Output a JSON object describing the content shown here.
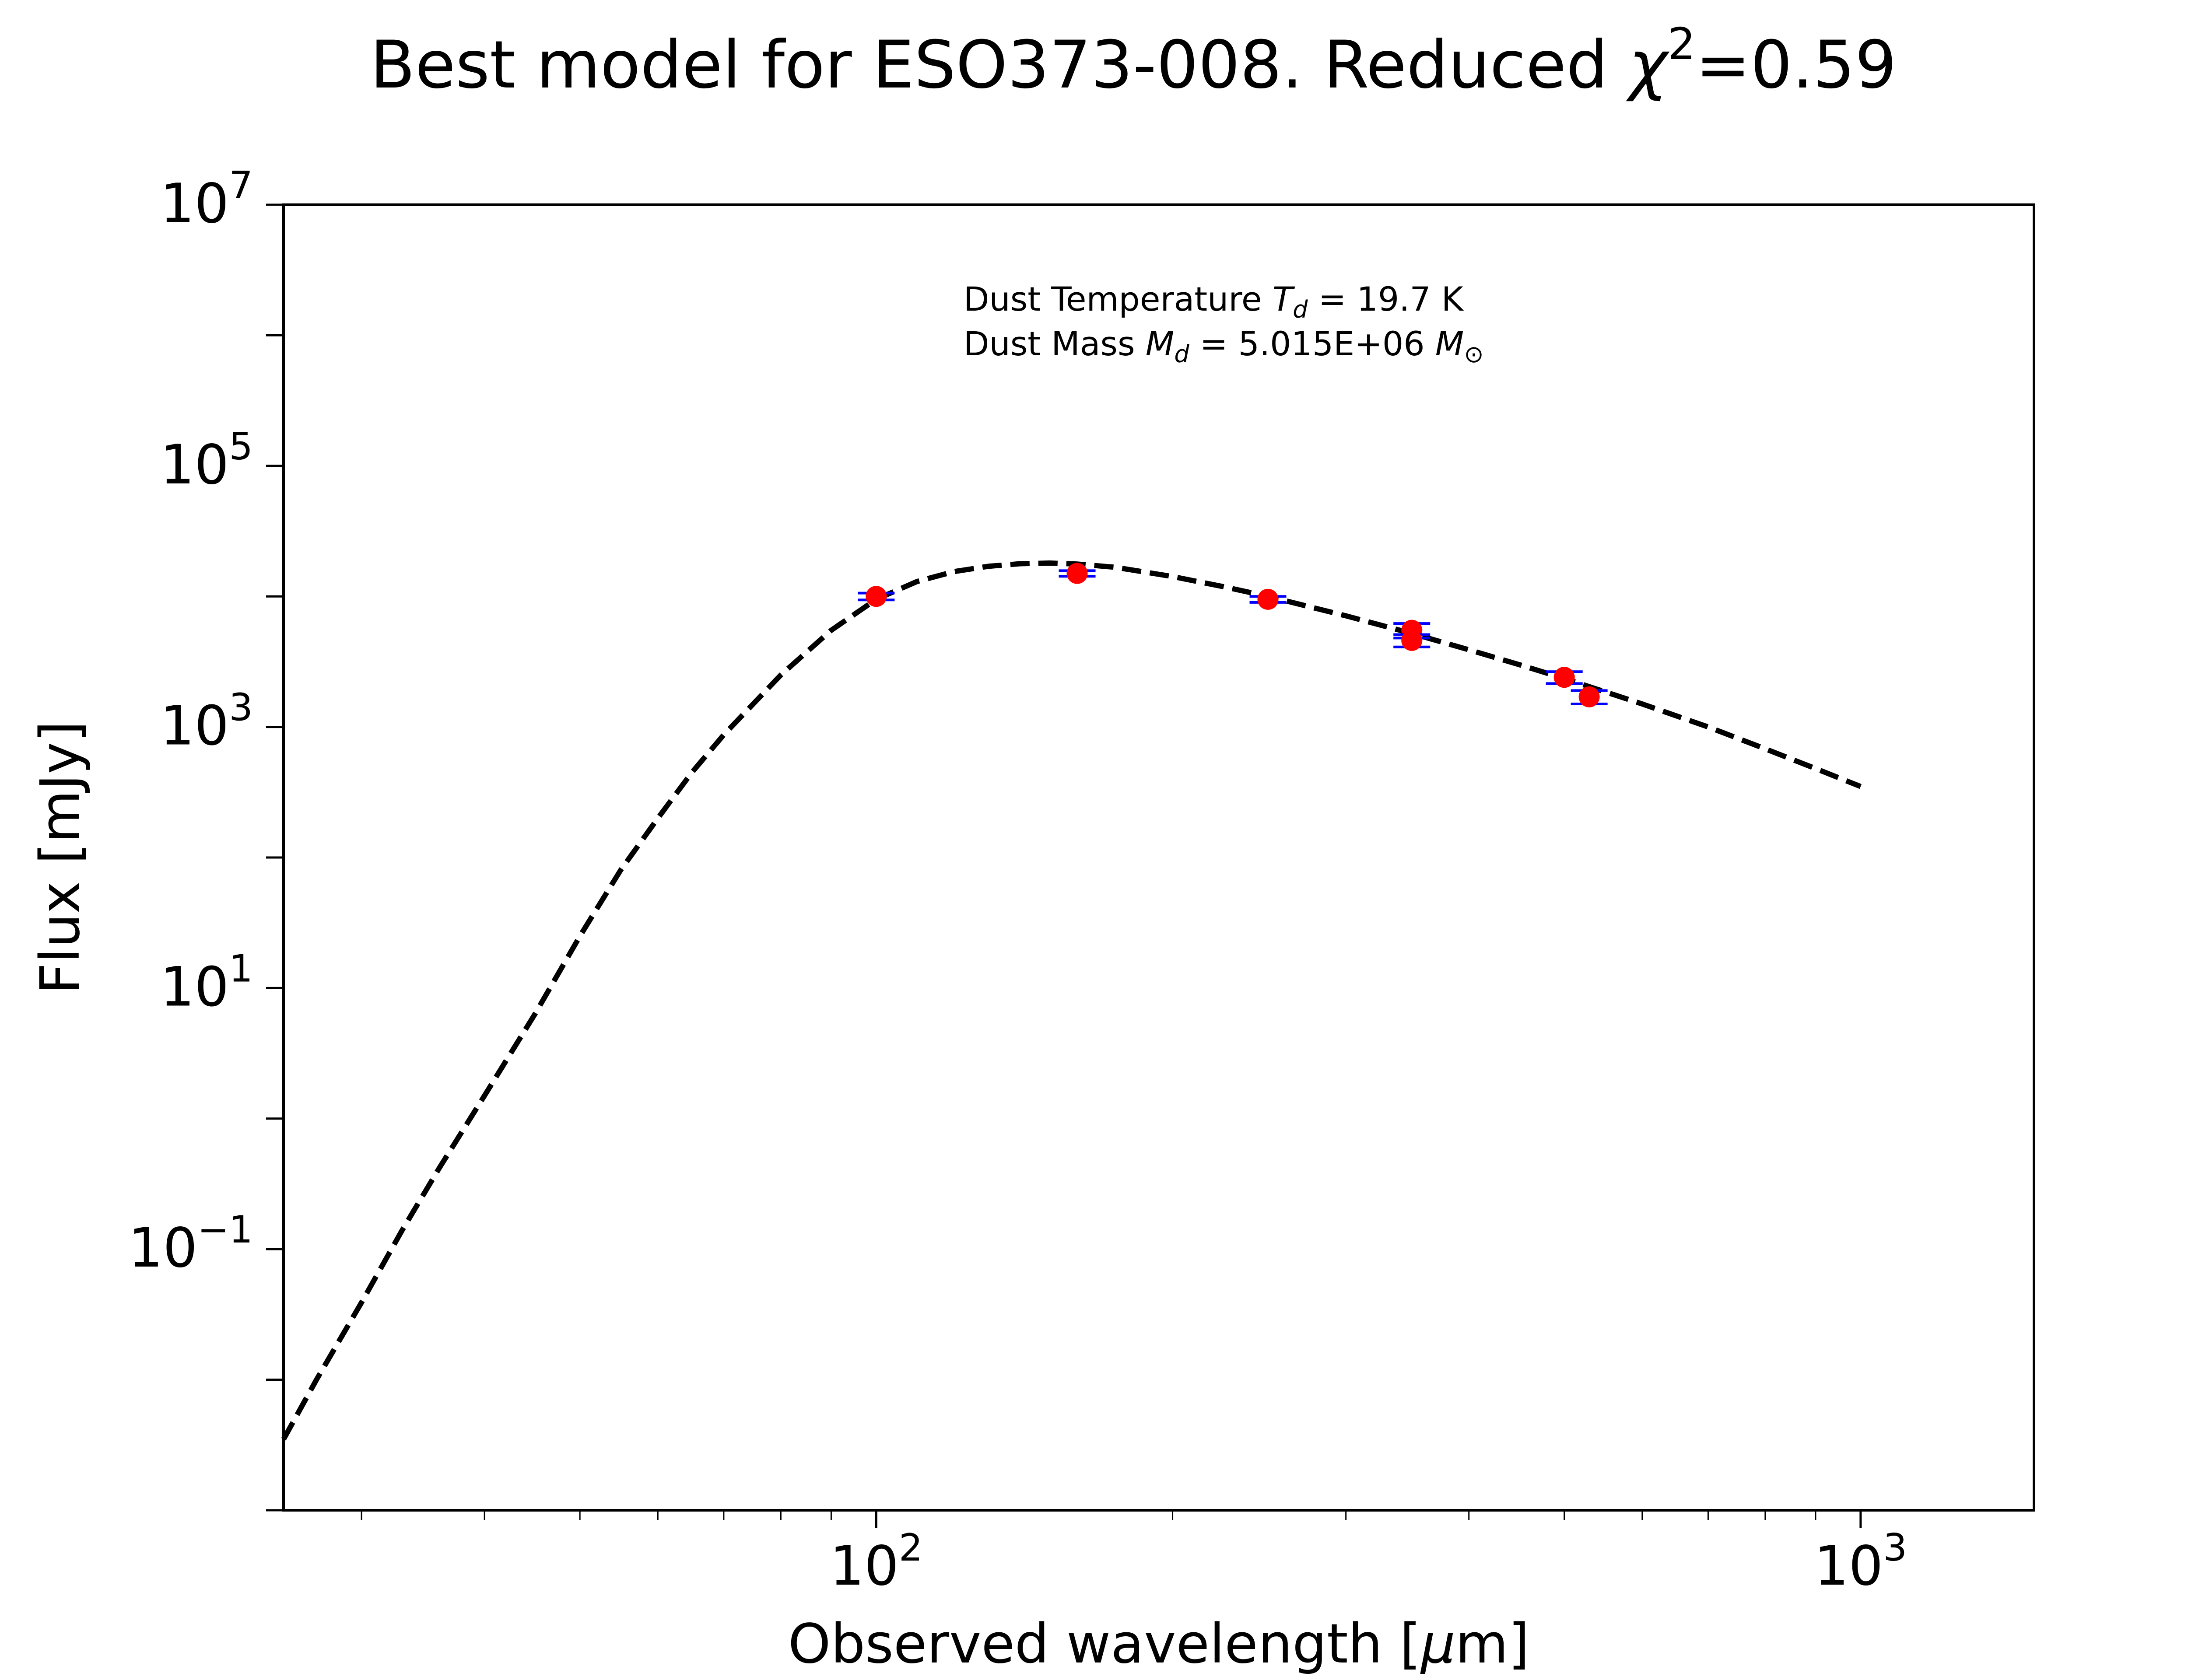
{
  "chart_data": {
    "type": "scatter",
    "title": {
      "prefix": "Best model for ESO373-008. Reduced ",
      "chi": "χ",
      "sup": "2",
      "suffix": "=0.59"
    },
    "xlabel": {
      "prefix": "Observed wavelength [",
      "mu": "μ",
      "suffix": "m]"
    },
    "ylabel": "Flux [mJy]",
    "xscale": "log",
    "yscale": "log",
    "xlim": [
      25,
      1500
    ],
    "ylim": [
      0.001,
      10000000
    ],
    "xticks": [
      {
        "value": 100,
        "base": "10",
        "exp": "2"
      },
      {
        "value": 1000,
        "base": "10",
        "exp": "3"
      }
    ],
    "yticks": [
      {
        "value": 0.1,
        "base": "10",
        "exp": "−1"
      },
      {
        "value": 10,
        "base": "10",
        "exp": "1"
      },
      {
        "value": 1000,
        "base": "10",
        "exp": "3"
      },
      {
        "value": 100000,
        "base": "10",
        "exp": "5"
      },
      {
        "value": 10000000,
        "base": "10",
        "exp": "7"
      }
    ],
    "annotation": {
      "line1": {
        "prefix": "Dust Temperature ",
        "var": "T",
        "sub": "d",
        "suffix": " = 19.7 K"
      },
      "line2": {
        "prefix": "Dust Mass ",
        "var": "M",
        "sub": "d",
        "mid": " = 5.015E+06 ",
        "var2": "M",
        "sub2": "⊙"
      }
    },
    "model": {
      "style": "dashed",
      "color": "#000000",
      "x": [
        25,
        27,
        30,
        33,
        36,
        40,
        45,
        50,
        55,
        60,
        65,
        70,
        80,
        90,
        100,
        110,
        120,
        130,
        140,
        150,
        160,
        175,
        200,
        225,
        250,
        300,
        350,
        400,
        450,
        500,
        550,
        600,
        700,
        800,
        900,
        1000
      ],
      "y": [
        0.0035,
        0.01,
        0.039,
        0.14,
        0.42,
        1.5,
        6.3,
        25,
        80,
        200,
        450,
        870,
        2500,
        5500,
        9500,
        13000,
        15500,
        17000,
        17800,
        18000,
        17700,
        16700,
        14200,
        11900,
        10000,
        7100,
        5200,
        3900,
        3000,
        2350,
        1860,
        1500,
        1000,
        680,
        480,
        350
      ]
    },
    "observations": {
      "marker_color": "#ff0000",
      "errorbar_color": "#0000ff",
      "points": [
        {
          "x": 100,
          "y": 10000,
          "yerr_low": 600,
          "yerr_high": 600
        },
        {
          "x": 160,
          "y": 15000,
          "yerr_low": 750,
          "yerr_high": 750
        },
        {
          "x": 250,
          "y": 9500,
          "yerr_low": 500,
          "yerr_high": 500
        },
        {
          "x": 350,
          "y": 5500,
          "yerr_low": 700,
          "yerr_high": 700
        },
        {
          "x": 350,
          "y": 4600,
          "yerr_low": 500,
          "yerr_high": 500
        },
        {
          "x": 500,
          "y": 2400,
          "yerr_low": 250,
          "yerr_high": 250
        },
        {
          "x": 530,
          "y": 1700,
          "yerr_low": 200,
          "yerr_high": 200
        }
      ]
    },
    "grid": false,
    "legend": "none"
  }
}
